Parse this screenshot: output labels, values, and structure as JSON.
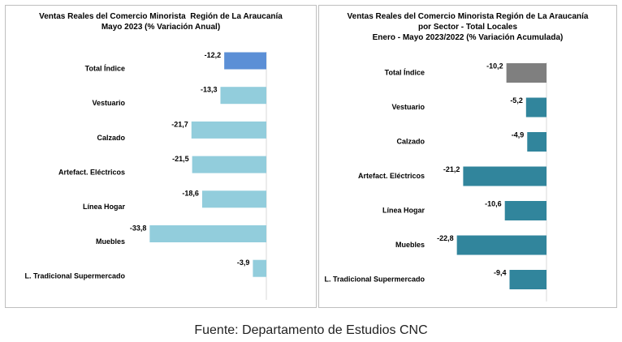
{
  "chart_data": [
    {
      "type": "bar",
      "orientation": "horizontal",
      "title_lines": [
        "Ventas Reales del Comercio Minorista  Región de La Araucanía",
        "Mayo 2023 (% Variación Anual)"
      ],
      "categories": [
        "Total Índice",
        "Vestuario",
        "Calzado",
        "Artefact. Eléctricos",
        "Línea Hogar",
        "Muebles",
        "L. Tradicional Supermercado"
      ],
      "values": [
        -12.2,
        -13.3,
        -21.7,
        -21.5,
        -18.6,
        -33.8,
        -3.9
      ],
      "value_labels": [
        "-12,2",
        "-13,3",
        "-21,7",
        "-21,5",
        "-18,6",
        "-33,8",
        "-3,9"
      ],
      "colors": [
        "#5b8fd6",
        "#92cddc",
        "#92cddc",
        "#92cddc",
        "#92cddc",
        "#92cddc",
        "#92cddc"
      ],
      "xlim": [
        -40,
        0
      ],
      "grid": false,
      "legend": "none"
    },
    {
      "type": "bar",
      "orientation": "horizontal",
      "title_lines": [
        "Ventas Reales del Comercio Minorista Región de La Araucanía",
        "por Sector - Total Locales",
        "Enero - Mayo 2023/2022 (% Variación Acumulada)"
      ],
      "categories": [
        "Total Índice",
        "Vestuario",
        "Calzado",
        "Artefact. Eléctricos",
        "Línea Hogar",
        "Muebles",
        "L. Tradicional Supermercado"
      ],
      "values": [
        -10.2,
        -5.2,
        -4.9,
        -21.2,
        -10.6,
        -22.8,
        -9.4
      ],
      "value_labels": [
        "-10,2",
        "-5,2",
        "-4,9",
        "-21,2",
        "-10,6",
        "-22,8",
        "-9,4"
      ],
      "colors": [
        "#7f7f7f",
        "#31859c",
        "#31859c",
        "#31859c",
        "#31859c",
        "#31859c",
        "#31859c"
      ],
      "xlim": [
        -25,
        0
      ],
      "grid": false,
      "legend": "none"
    }
  ],
  "source": "Fuente: Departamento de Estudios CNC"
}
